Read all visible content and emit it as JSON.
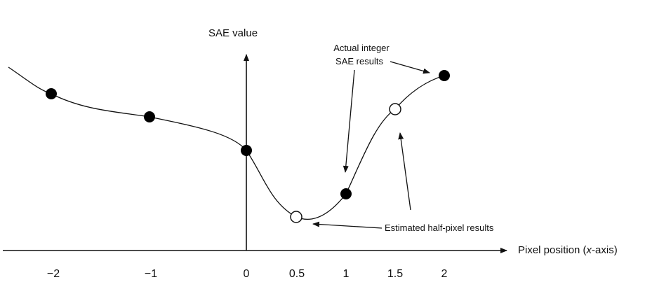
{
  "figure": {
    "y_axis_label": "SAE value",
    "x_axis_label_prefix": "Pixel position (",
    "x_axis_label_var": "x",
    "x_axis_label_suffix": "-axis)",
    "annotation_integer_line1": "Actual integer",
    "annotation_integer_line2": "SAE results",
    "annotation_half_pixel": "Estimated half-pixel results",
    "tick_labels": [
      "−2",
      "−1",
      "0",
      "0.5",
      "1",
      "1.5",
      "2"
    ],
    "integer_points": [
      {
        "x": -2,
        "label": "−2"
      },
      {
        "x": -1,
        "label": "−1"
      },
      {
        "x": 0,
        "label": "0"
      },
      {
        "x": 1,
        "label": "1"
      },
      {
        "x": 2,
        "label": "2"
      }
    ],
    "half_pixel_points": [
      {
        "x": 0.5,
        "label": "0.5"
      },
      {
        "x": 1.5,
        "label": "1.5"
      }
    ],
    "colors": {
      "ink": "#111111",
      "filled_point": "#000000",
      "open_point": "#ffffff"
    }
  }
}
